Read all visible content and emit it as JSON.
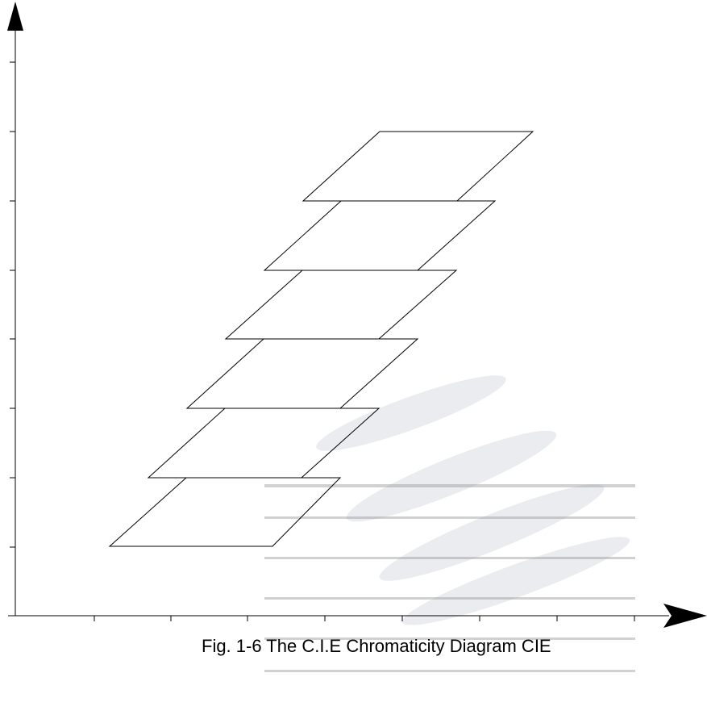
{
  "caption": "Fig. 1-6 The C.I.E Chromaticity Diagram CIE"
}
